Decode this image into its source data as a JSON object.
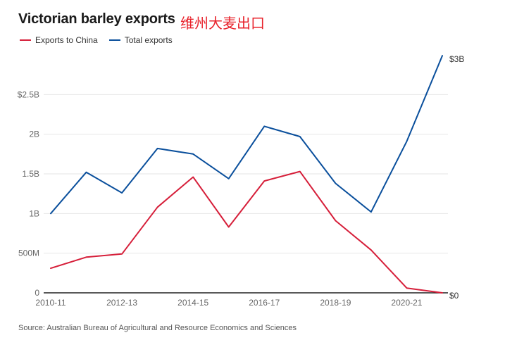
{
  "header": {
    "title": "Victorian barley exports",
    "subtitle": "维州大麦出口"
  },
  "legend": {
    "items": [
      {
        "label": "Exports to China",
        "color": "#d61f3a"
      },
      {
        "label": "Total exports",
        "color": "#0a4f9c"
      }
    ]
  },
  "source": "Source: Australian Bureau of Agricultural and Resource Economics and Sciences",
  "chart_data": {
    "type": "line",
    "title": "Victorian barley exports",
    "subtitle": "维州大麦出口",
    "x": [
      "2010-11",
      "2011-12",
      "2012-13",
      "2013-14",
      "2014-15",
      "2015-16",
      "2016-17",
      "2017-18",
      "2018-19",
      "2019-20",
      "2020-21",
      "2021-22"
    ],
    "x_tick_labels": [
      "2010-11",
      "2012-13",
      "2014-15",
      "2016-17",
      "2018-19",
      "2020-21"
    ],
    "y_tick_labels": [
      "0",
      "500M",
      "1B",
      "1.5B",
      "2B",
      "$2.5B"
    ],
    "y_ticks": [
      0,
      0.5,
      1,
      1.5,
      2,
      2.5
    ],
    "right_labels": [
      {
        "value": 3.0,
        "label": "$3B"
      },
      {
        "value": 0,
        "label": "$0"
      }
    ],
    "ylim": [
      0,
      3.0
    ],
    "grid": true,
    "legend_position": "top-left",
    "series": [
      {
        "name": "Exports to China",
        "color": "#d61f3a",
        "values": [
          0.31,
          0.45,
          0.49,
          1.08,
          1.46,
          0.83,
          1.41,
          1.53,
          0.91,
          0.54,
          0.06,
          0.0
        ]
      },
      {
        "name": "Total exports",
        "color": "#0a4f9c",
        "values": [
          1.0,
          1.52,
          1.26,
          1.82,
          1.75,
          1.44,
          2.1,
          1.97,
          1.38,
          1.02,
          1.91,
          2.99
        ]
      }
    ]
  }
}
